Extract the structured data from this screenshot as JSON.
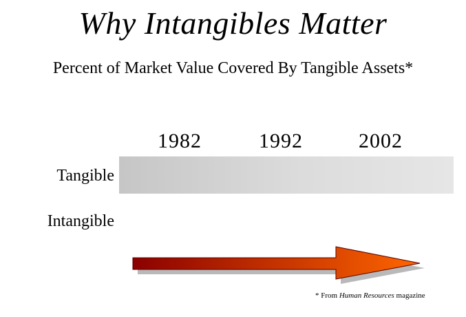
{
  "title": "Why Intangibles Matter",
  "subtitle": "Percent of Market Value Covered By Tangible Assets*",
  "years": [
    "1982",
    "1992",
    "2002"
  ],
  "rows": {
    "tangible": "Tangible",
    "intangible": "Intangible"
  },
  "footnote": {
    "prefix": "* From",
    "source": "Human Resources",
    "suffix": "magazine"
  },
  "colors": {
    "arrow_start": "#8b0000",
    "arrow_end": "#ff6600",
    "bar": "#d3d3d3"
  }
}
